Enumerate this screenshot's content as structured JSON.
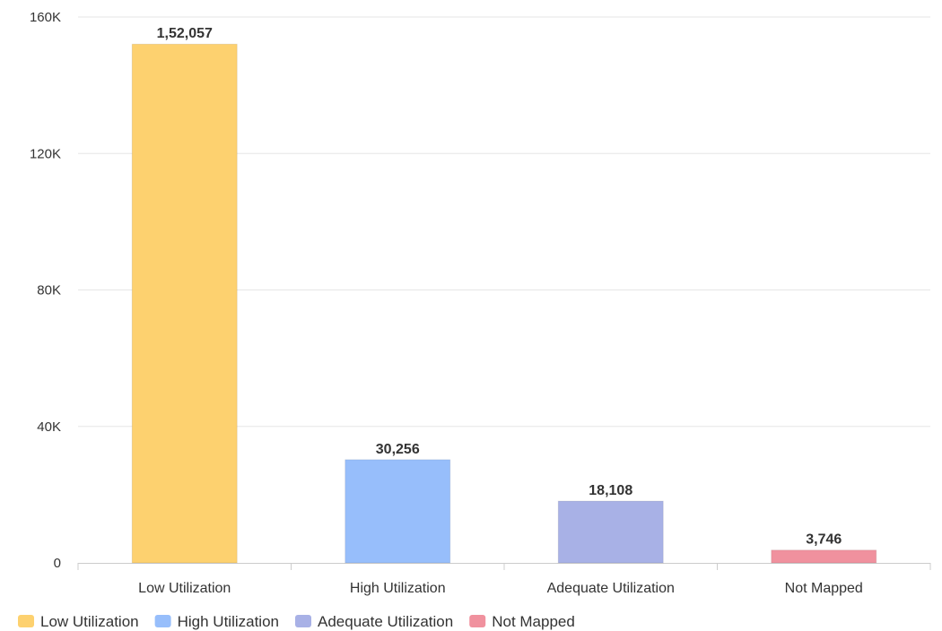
{
  "chart_data": {
    "type": "bar",
    "title": "",
    "xlabel": "",
    "ylabel": "",
    "categories": [
      "Low Utilization",
      "High Utilization",
      "Adequate Utilization",
      "Not Mapped"
    ],
    "values": [
      152057,
      30256,
      18108,
      3746
    ],
    "data_labels": [
      "1,52,057",
      "30,256",
      "18,108",
      "3,746"
    ],
    "colors": [
      "#FDD16F",
      "#97BEFB",
      "#A8B1E6",
      "#F0919E"
    ],
    "ylim": [
      0,
      160000
    ],
    "yticks": [
      {
        "value": 0,
        "label": "0"
      },
      {
        "value": 40000,
        "label": "40K"
      },
      {
        "value": 80000,
        "label": "80K"
      },
      {
        "value": 120000,
        "label": "120K"
      },
      {
        "value": 160000,
        "label": "160K"
      }
    ],
    "grid": true,
    "legend": {
      "placement": "bottom-left",
      "entries": [
        "Low Utilization",
        "High Utilization",
        "Adequate Utilization",
        "Not Mapped"
      ]
    }
  }
}
